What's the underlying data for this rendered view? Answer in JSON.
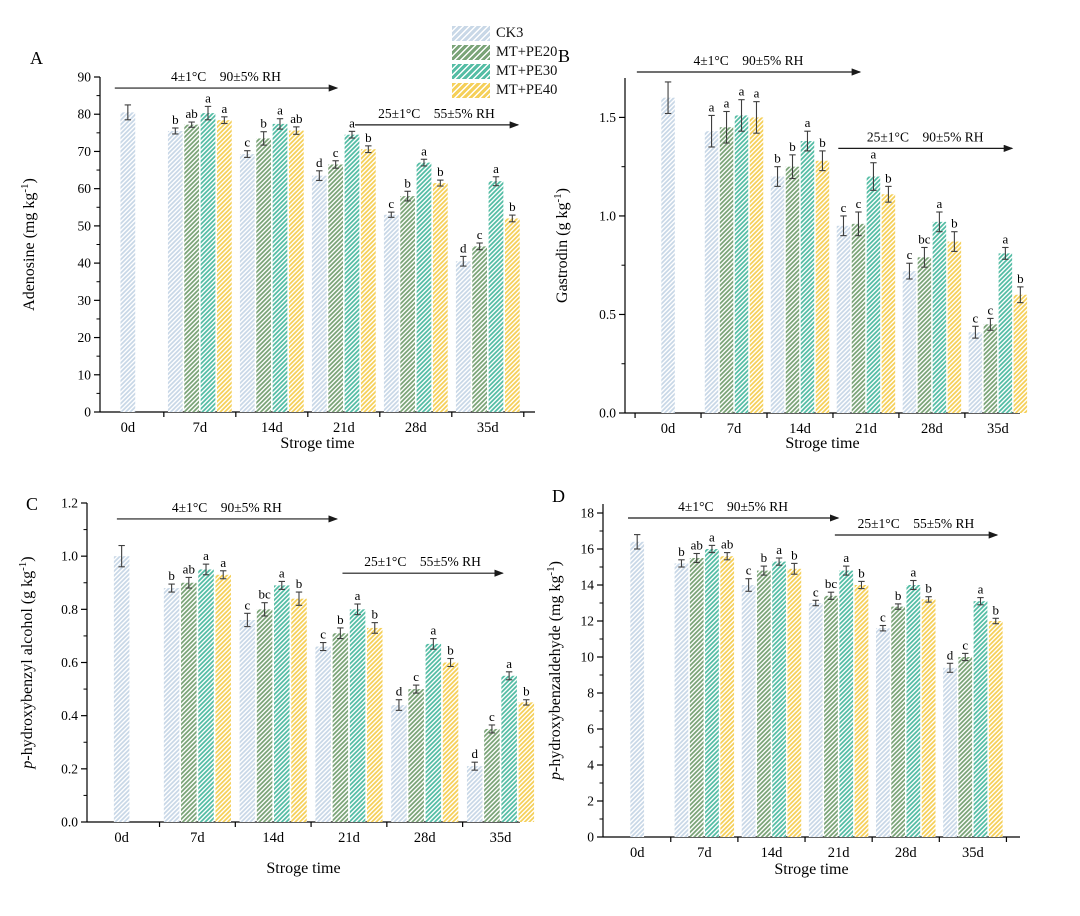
{
  "legend": {
    "items": [
      {
        "label": "CK3",
        "color": "#c9d8e7"
      },
      {
        "label": "MT+PE20",
        "color": "#7ba478"
      },
      {
        "label": "MT+PE30",
        "color": "#55bda5"
      },
      {
        "label": "MT+PE40",
        "color": "#f5d05a"
      }
    ]
  },
  "shared": {
    "xlabel": "Stroge time",
    "categories": [
      "0d",
      "7d",
      "14d",
      "21d",
      "28d",
      "35d"
    ],
    "hatch_color": "#ffffff",
    "error_color": "#3f3f3f",
    "axis_color": "#000000",
    "letter_color": "#1a1a1a",
    "annotation_color": "#1a1a1a"
  },
  "chart_data": [
    {
      "type": "bar",
      "panel": "A",
      "ylabel": {
        "italic": "",
        "text": "Adenosine (mg kg",
        "sup": "-1",
        "close": ")"
      },
      "xlabel": "Stroge time",
      "ylim": [
        0,
        90
      ],
      "ytick_major": 10,
      "ytick_minor": 5,
      "ytick_decimals": 0,
      "categories": [
        "0d",
        "7d",
        "14d",
        "21d",
        "28d",
        "35d"
      ],
      "series": [
        {
          "name": "CK3",
          "color": "#c9d8e7",
          "values": [
            80.5,
            75.5,
            69.3,
            63.5,
            53.0,
            40.5
          ],
          "errors": [
            2.0,
            0.8,
            0.9,
            1.3,
            0.7,
            1.3
          ],
          "letters": [
            "",
            "b",
            "c",
            "d",
            "c",
            "d"
          ]
        },
        {
          "name": "MT+PE20",
          "color": "#7ba478",
          "values": [
            null,
            77.2,
            73.5,
            66.5,
            58.0,
            44.5
          ],
          "errors": [
            null,
            0.7,
            1.8,
            1.0,
            1.3,
            0.9
          ],
          "letters": [
            "",
            "ab",
            "b",
            "c",
            "b",
            "c"
          ]
        },
        {
          "name": "MT+PE30",
          "color": "#55bda5",
          "values": [
            null,
            80.3,
            77.4,
            74.5,
            67.0,
            62.0
          ],
          "errors": [
            null,
            1.8,
            1.4,
            0.9,
            0.9,
            1.2
          ],
          "letters": [
            "",
            "a",
            "a",
            "a",
            "a",
            "a"
          ]
        },
        {
          "name": "MT+PE40",
          "color": "#f5d05a",
          "values": [
            null,
            78.4,
            75.6,
            70.6,
            61.5,
            52.0
          ],
          "errors": [
            null,
            0.9,
            1.0,
            0.9,
            0.8,
            0.9
          ],
          "letters": [
            "",
            "a",
            "ab",
            "b",
            "b",
            "b"
          ]
        }
      ],
      "annotations": [
        {
          "text": "4±1°C  90±5% RH",
          "x0": 0.034,
          "x1": 0.545,
          "y": 0.967
        },
        {
          "text": "25±1°C  55±5% RH",
          "x0": 0.586,
          "x1": 0.961,
          "y": 0.857
        }
      ]
    },
    {
      "type": "bar",
      "panel": "B",
      "ylabel": {
        "italic": "",
        "text": "Gastrodin (g kg",
        "sup": "-1",
        "close": ")"
      },
      "xlabel": "Stroge time",
      "ylim": [
        0,
        1.7
      ],
      "ytick_major": 0.5,
      "ytick_minor": 0.25,
      "ytick_decimals": 1,
      "categories": [
        "0d",
        "7d",
        "14d",
        "21d",
        "28d",
        "35d"
      ],
      "series": [
        {
          "name": "CK3",
          "color": "#c9d8e7",
          "values": [
            1.6,
            1.43,
            1.2,
            0.95,
            0.72,
            0.41
          ],
          "errors": [
            0.08,
            0.08,
            0.05,
            0.05,
            0.04,
            0.03
          ],
          "letters": [
            "",
            "a",
            "b",
            "c",
            "c",
            "c"
          ]
        },
        {
          "name": "MT+PE20",
          "color": "#7ba478",
          "values": [
            null,
            1.45,
            1.25,
            0.96,
            0.79,
            0.45
          ],
          "errors": [
            null,
            0.08,
            0.06,
            0.06,
            0.05,
            0.03
          ],
          "letters": [
            "",
            "a",
            "b",
            "c",
            "bc",
            "c"
          ]
        },
        {
          "name": "MT+PE30",
          "color": "#55bda5",
          "values": [
            null,
            1.51,
            1.38,
            1.2,
            0.97,
            0.81
          ],
          "errors": [
            null,
            0.08,
            0.05,
            0.07,
            0.05,
            0.03
          ],
          "letters": [
            "",
            "a",
            "a",
            "a",
            "a",
            "a"
          ]
        },
        {
          "name": "MT+PE40",
          "color": "#f5d05a",
          "values": [
            null,
            1.5,
            1.28,
            1.11,
            0.87,
            0.6
          ],
          "errors": [
            null,
            0.08,
            0.05,
            0.04,
            0.05,
            0.04
          ],
          "letters": [
            "",
            "a",
            "b",
            "b",
            "b",
            "b"
          ]
        }
      ],
      "annotations": [
        {
          "text": "4±1°C  90±5% RH",
          "x0": 0.03,
          "x1": 0.595,
          "y": 1.018
        },
        {
          "text": "25±1°C  90±5% RH",
          "x0": 0.54,
          "x1": 0.98,
          "y": 0.79
        }
      ]
    },
    {
      "type": "bar",
      "panel": "C",
      "ylabel": {
        "italic": "p",
        "text": "-hydroxybenzyl alcohol (g kg",
        "sup": "-1",
        "close": ")"
      },
      "xlabel": "Stroge time",
      "ylim": [
        0,
        1.2
      ],
      "ytick_major": 0.2,
      "ytick_minor": 0.1,
      "ytick_decimals": 1,
      "categories": [
        "0d",
        "7d",
        "14d",
        "21d",
        "28d",
        "35d"
      ],
      "series": [
        {
          "name": "CK3",
          "color": "#c9d8e7",
          "values": [
            1.0,
            0.88,
            0.76,
            0.66,
            0.44,
            0.21
          ],
          "errors": [
            0.04,
            0.015,
            0.025,
            0.015,
            0.02,
            0.015
          ],
          "letters": [
            "",
            "b",
            "c",
            "c",
            "d",
            "d"
          ]
        },
        {
          "name": "MT+PE20",
          "color": "#7ba478",
          "values": [
            null,
            0.9,
            0.8,
            0.71,
            0.5,
            0.35
          ],
          "errors": [
            null,
            0.02,
            0.025,
            0.02,
            0.015,
            0.015
          ],
          "letters": [
            "",
            "ab",
            "bc",
            "b",
            "c",
            "c"
          ]
        },
        {
          "name": "MT+PE30",
          "color": "#55bda5",
          "values": [
            null,
            0.95,
            0.89,
            0.8,
            0.67,
            0.55
          ],
          "errors": [
            null,
            0.02,
            0.015,
            0.02,
            0.02,
            0.015
          ],
          "letters": [
            "",
            "a",
            "a",
            "a",
            "a",
            "a"
          ]
        },
        {
          "name": "MT+PE40",
          "color": "#f5d05a",
          "values": [
            null,
            0.93,
            0.84,
            0.73,
            0.6,
            0.45
          ],
          "errors": [
            null,
            0.015,
            0.025,
            0.02,
            0.015,
            0.01
          ],
          "letters": [
            "",
            "a",
            "b",
            "b",
            "b",
            "b"
          ]
        }
      ],
      "annotations": [
        {
          "text": "4±1°C  90±5% RH",
          "x0": 0.069,
          "x1": 0.577,
          "y": 0.95
        },
        {
          "text": "25±1°C  55±5% RH",
          "x0": 0.59,
          "x1": 0.96,
          "y": 0.78
        }
      ]
    },
    {
      "type": "bar",
      "panel": "D",
      "ylabel": {
        "italic": "p",
        "text": "-hydroxybenzaldehyde (mg kg",
        "sup": "-1",
        "close": ")"
      },
      "xlabel": "Stroge time",
      "ylim": [
        0,
        18.5
      ],
      "ytick_major": 2,
      "ytick_minor": 1,
      "ytick_decimals": 0,
      "categories": [
        "0d",
        "7d",
        "14d",
        "21d",
        "28d",
        "35d"
      ],
      "series": [
        {
          "name": "CK3",
          "color": "#c9d8e7",
          "values": [
            16.4,
            15.2,
            14.0,
            13.0,
            11.6,
            9.4
          ],
          "errors": [
            0.4,
            0.2,
            0.35,
            0.15,
            0.15,
            0.25
          ],
          "letters": [
            "",
            "b",
            "c",
            "c",
            "c",
            "d"
          ]
        },
        {
          "name": "MT+PE20",
          "color": "#7ba478",
          "values": [
            null,
            15.5,
            14.8,
            13.4,
            12.8,
            10.0
          ],
          "errors": [
            null,
            0.25,
            0.25,
            0.2,
            0.15,
            0.2
          ],
          "letters": [
            "",
            "ab",
            "b",
            "bc",
            "b",
            "c"
          ]
        },
        {
          "name": "MT+PE30",
          "color": "#55bda5",
          "values": [
            null,
            16.0,
            15.3,
            14.8,
            14.0,
            13.1
          ],
          "errors": [
            null,
            0.2,
            0.2,
            0.25,
            0.25,
            0.2
          ],
          "letters": [
            "",
            "a",
            "a",
            "a",
            "a",
            "a"
          ]
        },
        {
          "name": "MT+PE40",
          "color": "#f5d05a",
          "values": [
            null,
            15.6,
            14.9,
            14.0,
            13.2,
            12.0
          ],
          "errors": [
            null,
            0.2,
            0.3,
            0.2,
            0.15,
            0.15
          ],
          "letters": [
            "",
            "ab",
            "b",
            "b",
            "b",
            "b"
          ]
        }
      ],
      "annotations": [
        {
          "text": "4±1°C  90±5% RH",
          "x0": 0.06,
          "x1": 0.564,
          "y": 0.958
        },
        {
          "text": "25±1°C  55±5% RH",
          "x0": 0.556,
          "x1": 0.945,
          "y": 0.907
        }
      ]
    }
  ]
}
